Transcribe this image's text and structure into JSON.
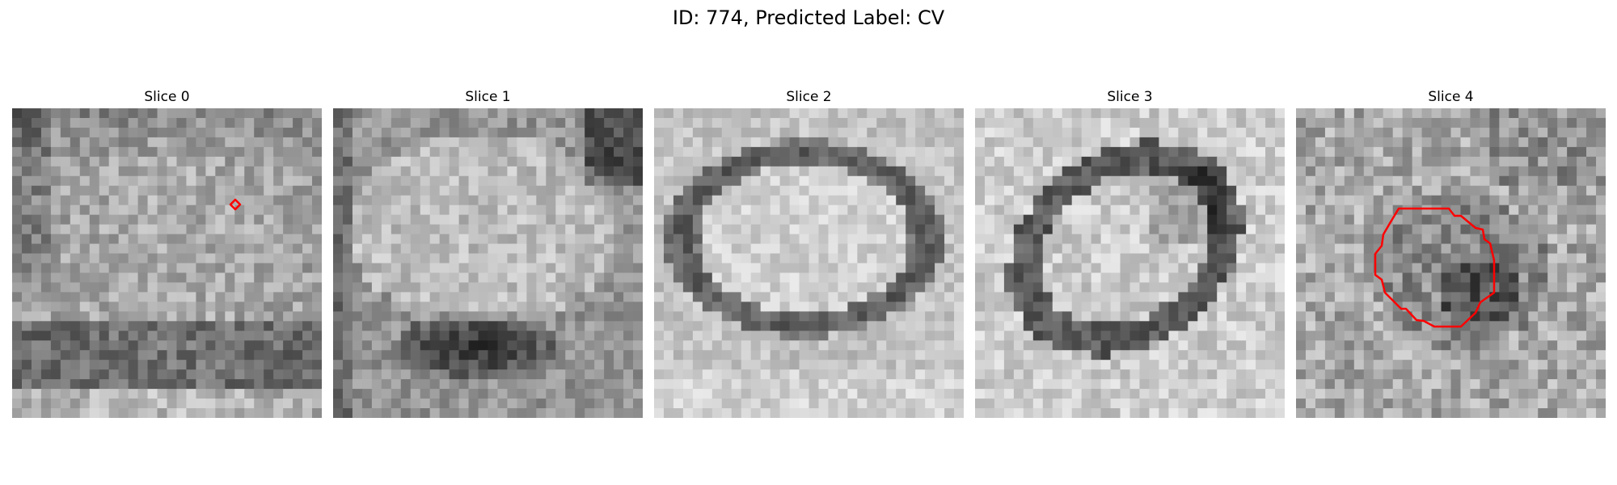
{
  "figure": {
    "title": "ID: 774, Predicted Label: CV"
  },
  "panels": [
    {
      "title": "Slice 0"
    },
    {
      "title": "Slice 1"
    },
    {
      "title": "Slice 2"
    },
    {
      "title": "Slice 3"
    },
    {
      "title": "Slice 4"
    }
  ],
  "colors": {
    "outline": "#ff0000",
    "background": "#ffffff",
    "colormap": "gray"
  }
}
